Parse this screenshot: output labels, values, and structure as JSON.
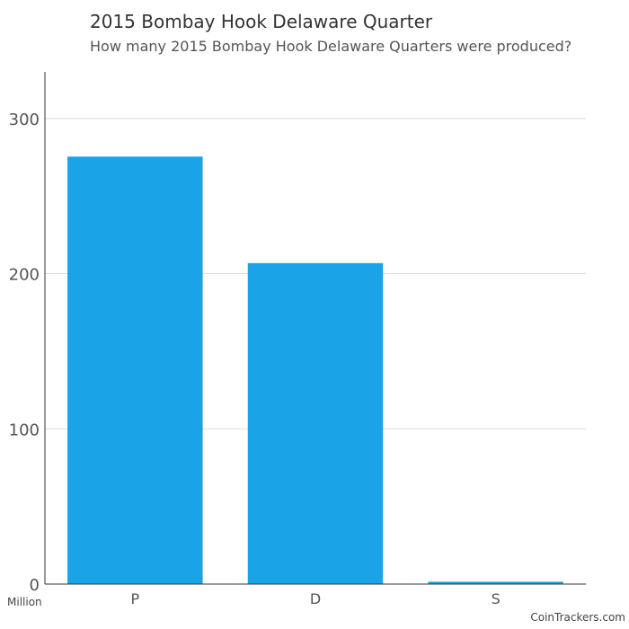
{
  "chart_data": {
    "type": "bar",
    "title": "2015 Bombay Hook Delaware Quarter",
    "subtitle": "How many 2015 Bombay Hook Delaware Quarters were produced?",
    "categories": [
      "P",
      "D",
      "S"
    ],
    "values": [
      275.4,
      206.8,
      1.5
    ],
    "ylim": [
      0,
      330
    ],
    "yticks": [
      0,
      100,
      200,
      300
    ],
    "unit_label": "Million",
    "grid": true,
    "bar_color": "#1aa3e6"
  },
  "footer": {
    "credit": "CoinTrackers.com"
  }
}
